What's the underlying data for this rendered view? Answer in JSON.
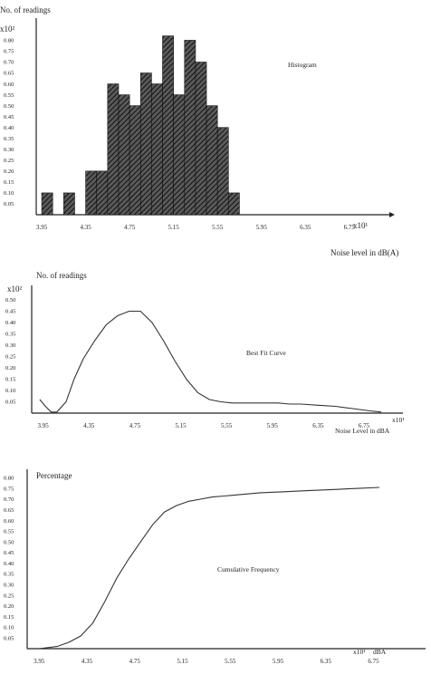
{
  "chart_data": [
    {
      "type": "bar",
      "ylabel": "No. of readings",
      "y_multiplier": "x10²",
      "yticks": [
        "0.05",
        "0.10",
        "0.15",
        "0.20",
        "0.25",
        "0.30",
        "0.35",
        "0.40",
        "0.45",
        "0.50",
        "0.55",
        "0.60",
        "0.65",
        "0.70",
        "0.75",
        "0.80"
      ],
      "x_multiplier": "x10¹",
      "xlabel": "Noise level in dB(A)",
      "xticks": [
        "3.95",
        "4.35",
        "4.75",
        "5.15",
        "5.55",
        "5.95",
        "6.35",
        "6.75"
      ],
      "annotation": "Histogram",
      "bin_width": 0.1,
      "bins_start": [
        3.95,
        4.05,
        4.15,
        4.25,
        4.35,
        4.45,
        4.55,
        4.65,
        4.75,
        4.85,
        4.95,
        5.05,
        5.15,
        5.25,
        5.35,
        5.45,
        5.55,
        5.65,
        5.75,
        5.85,
        5.95,
        6.05,
        6.15,
        6.25,
        6.35,
        6.45,
        6.55,
        6.65,
        6.75
      ],
      "values": [
        0.1,
        0,
        0.1,
        0,
        0.2,
        0.2,
        0.6,
        0.55,
        0.5,
        0.65,
        0.6,
        0.82,
        0.55,
        0.8,
        0.7,
        0.5,
        0.4,
        0.1,
        0,
        0,
        0,
        0,
        0,
        0,
        0,
        0,
        0,
        0,
        0
      ],
      "xlim": [
        3.9,
        6.95
      ],
      "ylim": [
        0,
        0.86
      ],
      "grid": false
    },
    {
      "type": "line",
      "ylabel": "No. of readings",
      "y_multiplier": "x10²",
      "yticks": [
        "0.05",
        "0.10",
        "0.15",
        "0.20",
        "0.25",
        "0.30",
        "0.35",
        "0.40",
        "0.45",
        "0.50"
      ],
      "x_multiplier": "x10¹",
      "xlabel": "Noise Level in dBA",
      "xticks": [
        "3.95",
        "4.35",
        "4.75",
        "5.15",
        "5.55",
        "5.95",
        "6.35",
        "6.75"
      ],
      "annotation": "Best Fit Curve",
      "series": [
        {
          "x": [
            3.92,
            3.97,
            4.02,
            4.07,
            4.15,
            4.22,
            4.3,
            4.4,
            4.5,
            4.6,
            4.7,
            4.8,
            4.9,
            5.0,
            5.1,
            5.2,
            5.3,
            5.4,
            5.5,
            5.6,
            5.7,
            5.8,
            5.9,
            6.0,
            6.1,
            6.2,
            6.35,
            6.5,
            6.65,
            6.8,
            6.9
          ],
          "y": [
            0.06,
            0.03,
            0.005,
            0.005,
            0.05,
            0.15,
            0.24,
            0.32,
            0.39,
            0.43,
            0.45,
            0.45,
            0.4,
            0.32,
            0.23,
            0.15,
            0.09,
            0.06,
            0.05,
            0.045,
            0.045,
            0.045,
            0.045,
            0.045,
            0.04,
            0.04,
            0.035,
            0.03,
            0.02,
            0.01,
            0.005
          ]
        }
      ],
      "xlim": [
        3.85,
        7.05
      ],
      "ylim": [
        0,
        0.52
      ],
      "grid": false
    },
    {
      "type": "line",
      "ylabel": "Percentage",
      "yticks": [
        "0.05",
        "0.10",
        "0.15",
        "0.20",
        "0.25",
        "0.30",
        "0.35",
        "0.40",
        "0.45",
        "0.50",
        "0.55",
        "0.60",
        "0.65",
        "0.70",
        "0.75",
        "0.80"
      ],
      "x_multiplier": "x10¹",
      "xlabel": "dBA",
      "xticks": [
        "3.95",
        "4.35",
        "4.75",
        "5.15",
        "5.55",
        "5.95",
        "6.35",
        "6.75"
      ],
      "annotation": "Cumulative Frequency",
      "series": [
        {
          "x": [
            3.95,
            4.1,
            4.2,
            4.3,
            4.4,
            4.5,
            4.6,
            4.7,
            4.8,
            4.9,
            5.0,
            5.1,
            5.2,
            5.3,
            5.4,
            5.5,
            5.6,
            5.8,
            6.0,
            6.2,
            6.4,
            6.6,
            6.8
          ],
          "y": [
            0,
            0.01,
            0.03,
            0.06,
            0.12,
            0.22,
            0.33,
            0.42,
            0.5,
            0.58,
            0.64,
            0.67,
            0.69,
            0.7,
            0.71,
            0.715,
            0.72,
            0.73,
            0.735,
            0.74,
            0.745,
            0.75,
            0.755
          ]
        }
      ],
      "xlim": [
        3.85,
        7.05
      ],
      "ylim": [
        0,
        0.84
      ],
      "grid": false
    }
  ]
}
